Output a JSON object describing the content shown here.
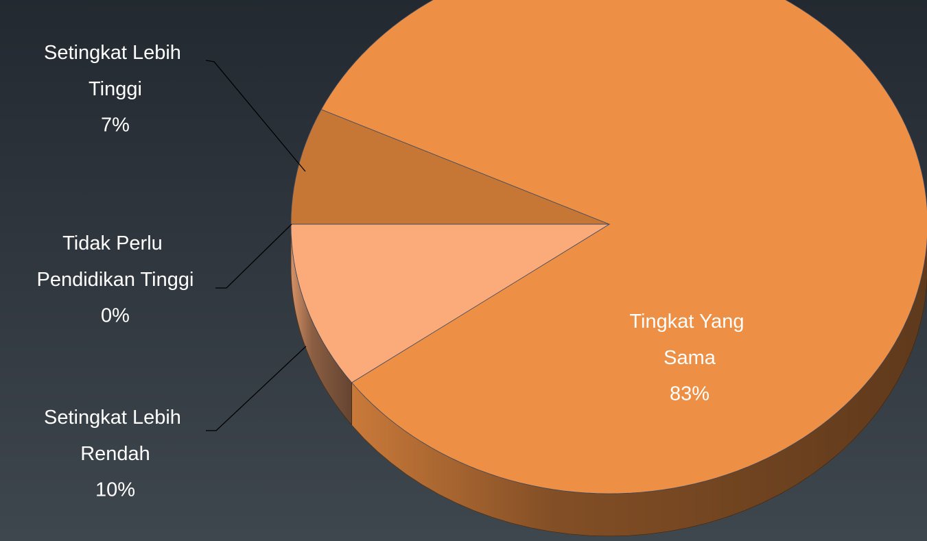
{
  "chart_data": {
    "type": "pie",
    "categories": [
      "Setingkat Lebih Tinggi",
      "Tingkat Yang Sama",
      "Setingkat Lebih Rendah",
      "Tidak Perlu Pendidikan Tinggi"
    ],
    "values": [
      7,
      83,
      10,
      0
    ],
    "value_labels": [
      "7%",
      "83%",
      "10%",
      "0%"
    ],
    "colors": [
      "#c67735",
      "#ed8f44",
      "#fbab79",
      "#f4a060"
    ]
  }
}
